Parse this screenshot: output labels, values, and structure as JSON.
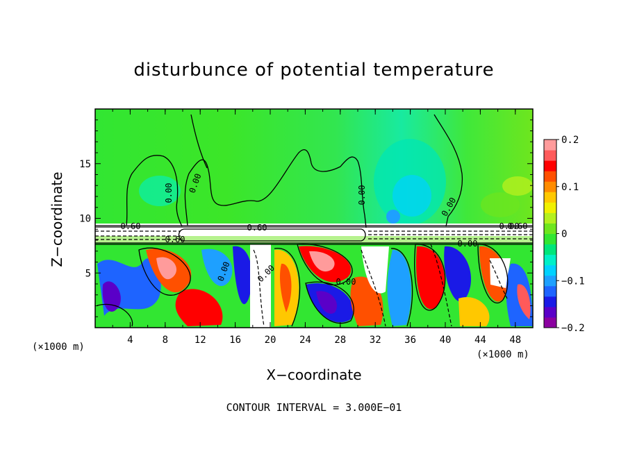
{
  "chart_data": {
    "type": "heatmap",
    "title": "disturbunce of potential temperature",
    "xlabel": "X−coordinate",
    "ylabel": "Z−coordinate",
    "x_unit_left": "(×1000 m)",
    "x_unit_right": "(×1000 m)",
    "xlim": [
      0,
      50
    ],
    "ylim": [
      0,
      20
    ],
    "x_ticks": [
      "4",
      "8",
      "12",
      "16",
      "20",
      "24",
      "28",
      "32",
      "36",
      "40",
      "44",
      "48"
    ],
    "y_ticks": [
      "5",
      "10",
      "15"
    ],
    "colorbar": {
      "range": [
        -0.2,
        0.2
      ],
      "tick_labels": [
        "0.2",
        "0.1",
        "0",
        "−0.1",
        "−0.2"
      ],
      "colors": [
        "#8b00a0",
        "#5a00c8",
        "#1a1ae6",
        "#1e64ff",
        "#1ea0ff",
        "#00d2ff",
        "#00f0c8",
        "#00e67a",
        "#32e632",
        "#6ee61e",
        "#b4f01e",
        "#f0f000",
        "#ffc800",
        "#ff8c00",
        "#ff5000",
        "#ff0000",
        "#ff5a5a",
        "#ff9b9b"
      ]
    },
    "contour_labels": [
      "0.00",
      "0.00",
      "0.00",
      "0.00",
      "0.60",
      "0.60",
      "0.60",
      "0.60",
      "0.00",
      "0.00",
      "0.00",
      "0.00",
      "0.00"
    ],
    "annotation": "CONTOUR INTERVAL = 3.000E−01"
  }
}
